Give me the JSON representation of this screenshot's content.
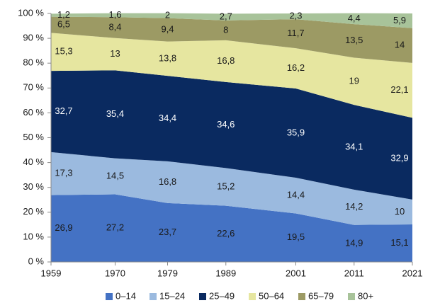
{
  "chart_data": {
    "type": "stacked_area",
    "x": [
      1959,
      1970,
      1979,
      1989,
      2001,
      2011,
      2021
    ],
    "xlim": [
      1959,
      2021
    ],
    "xticks": [
      1959,
      1970,
      1979,
      1989,
      2001,
      2011,
      2021
    ],
    "ylim": [
      0,
      100
    ],
    "yticks": [
      {
        "value": 0,
        "label": "0 %"
      },
      {
        "value": 10,
        "label": "10 %"
      },
      {
        "value": 20,
        "label": "20 %"
      },
      {
        "value": 30,
        "label": "30 %"
      },
      {
        "value": 40,
        "label": "40 %"
      },
      {
        "value": 50,
        "label": "50 %"
      },
      {
        "value": 60,
        "label": "60 %"
      },
      {
        "value": 70,
        "label": "70 %"
      },
      {
        "value": 80,
        "label": "80 %"
      },
      {
        "value": 90,
        "label": "90 %"
      },
      {
        "value": 100,
        "label": "100 %"
      }
    ],
    "grid": false,
    "legend": "bottom",
    "series": [
      {
        "name": "0–14",
        "color": "#4472c4",
        "values": [
          26.9,
          27.2,
          23.7,
          22.6,
          19.5,
          14.9,
          15.1
        ],
        "value_labels": [
          "26,9",
          "27,2",
          "23,7",
          "22,6",
          "19,5",
          "14,9",
          "15,1"
        ]
      },
      {
        "name": "15–24",
        "color": "#9bbadf",
        "values": [
          17.3,
          14.5,
          16.8,
          15.2,
          14.4,
          14.2,
          10
        ],
        "value_labels": [
          "17,3",
          "14,5",
          "16,8",
          "15,2",
          "14,4",
          "14,2",
          "10"
        ]
      },
      {
        "name": "25–49",
        "color": "#0a2a60",
        "values": [
          32.7,
          35.4,
          34.4,
          34.6,
          35.9,
          34.1,
          32.9
        ],
        "value_labels": [
          "32,7",
          "35,4",
          "34,4",
          "34,6",
          "35,9",
          "34,1",
          "32,9"
        ]
      },
      {
        "name": "50–64",
        "color": "#e6e6a0",
        "values": [
          15.3,
          13,
          13.8,
          16.8,
          16.2,
          19,
          22.1
        ],
        "value_labels": [
          "15,3",
          "13",
          "13,8",
          "16,8",
          "16,2",
          "19",
          "22,1"
        ]
      },
      {
        "name": "65–79",
        "color": "#9c9a64",
        "values": [
          6.5,
          8.4,
          9.4,
          8,
          11.7,
          13.5,
          14
        ],
        "value_labels": [
          "6,5",
          "8,4",
          "9,4",
          "8",
          "11,7",
          "13,5",
          "14"
        ]
      },
      {
        "name": "80+",
        "color": "#a8c39a",
        "values": [
          1.2,
          1.6,
          2,
          2.7,
          2.3,
          4.4,
          5.9
        ],
        "value_labels": [
          "1,2",
          "1,6",
          "2",
          "2,7",
          "2,3",
          "4,4",
          "5,9"
        ]
      }
    ]
  }
}
